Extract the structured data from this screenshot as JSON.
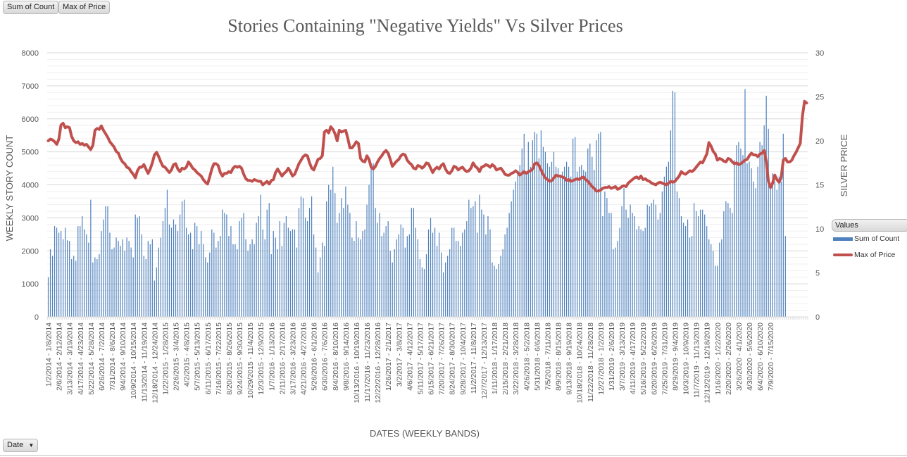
{
  "field_buttons": {
    "sum_of_count": "Sum of Count",
    "max_of_price": "Max of Price",
    "date": "Date",
    "date_dropdown_icon": "chevron-down-icon"
  },
  "legend": {
    "header": "Values",
    "items": [
      "Sum of Count",
      "Max of Price"
    ]
  },
  "colors": {
    "bars": "#4f81bd",
    "line": "#c0504d",
    "grid": "#d9d9d9"
  },
  "chart_data": {
    "type": "bar+line",
    "title": "Stories Containing \"Negative Yields\" Vs Silver Prices",
    "xlabel": "DATES (WEEKLY BANDS)",
    "ylabel": "WEEKLY STORY COUNT",
    "y2label": "SILVER PRICE",
    "ylim": [
      0,
      8000
    ],
    "y2lim": [
      0,
      30
    ],
    "yticks": [
      0,
      1000,
      2000,
      3000,
      4000,
      5000,
      6000,
      7000,
      8000
    ],
    "y2ticks": [
      0,
      5,
      10,
      15,
      20,
      25,
      30
    ],
    "grid": true,
    "legend_position": "right",
    "x_tick_labels": [
      "1/2/2014 - 1/8/2014",
      "2/6/2014 - 2/12/2014",
      "3/13/2014 - 3/19/2014",
      "4/17/2014 - 4/23/2014",
      "5/22/2014 - 5/28/2014",
      "6/26/2014 - 7/2/2014",
      "7/31/2014 - 8/6/2014",
      "9/4/2014 - 9/10/2014",
      "10/9/2014 - 10/15/2014",
      "11/13/2014 - 11/19/2014",
      "12/18/2014 - 12/24/2014",
      "1/22/2015 - 1/28/2015",
      "2/26/2015 - 3/4/2015",
      "4/2/2015 - 4/8/2015",
      "5/7/2015 - 5/13/2015",
      "6/11/2015 - 6/17/2015",
      "7/16/2015 - 7/22/2015",
      "8/20/2015 - 8/26/2015",
      "9/24/2015 - 9/30/2015",
      "10/29/2015 - 11/4/2015",
      "12/3/2015 - 12/9/2015",
      "1/7/2016 - 1/13/2016",
      "2/11/2016 - 2/17/2016",
      "3/17/2016 - 3/23/2016",
      "4/21/2016 - 4/27/2016",
      "5/26/2016 - 6/1/2016",
      "6/30/2016 - 7/6/2016",
      "8/4/2016 - 8/10/2016",
      "9/8/2016 - 9/14/2016",
      "10/13/2016 - 10/19/2016",
      "11/17/2016 - 11/23/2016",
      "12/22/2016 - 12/28/2016",
      "1/26/2017 - 2/1/2017",
      "3/2/2017 - 3/8/2017",
      "4/6/2017 - 4/12/2017",
      "5/11/2017 - 5/17/2017",
      "6/15/2017 - 6/21/2017",
      "7/20/2017 - 7/26/2017",
      "8/24/2017 - 8/30/2017",
      "9/28/2017 - 10/4/2017",
      "11/2/2017 - 11/8/2017",
      "12/7/2017 - 12/13/2017",
      "1/11/2018 - 1/17/2018",
      "2/15/2018 - 2/21/2018",
      "3/22/2018 - 3/28/2018",
      "4/26/2018 - 5/2/2018",
      "5/31/2018 - 6/6/2018",
      "7/5/2018 - 7/11/2018",
      "8/9/2018 - 8/15/2018",
      "9/13/2018 - 9/19/2018",
      "10/18/2018 - 10/24/2018",
      "11/22/2018 - 11/28/2018",
      "12/27/2018 - 1/2/2019",
      "1/31/2019 - 2/6/2019",
      "3/7/2019 - 3/13/2019",
      "4/11/2019 - 4/17/2019",
      "5/16/2019 - 5/22/2019",
      "6/20/2019 - 6/26/2019",
      "7/25/2019 - 7/31/2019",
      "8/29/2019 - 9/4/2019",
      "10/3/2019 - 10/9/2019",
      "11/7/2019 - 11/13/2019",
      "12/12/2019 - 12/18/2019",
      "1/16/2020 - 1/22/2020",
      "2/20/2020 - 2/26/2020",
      "3/26/2020 - 4/1/2020",
      "4/30/2020 - 5/6/2020",
      "6/4/2020 - 6/10/2020",
      "7/9/2020 - 7/15/2020"
    ],
    "weeks_per_label": 5,
    "series": [
      {
        "name": "Sum of Count",
        "type": "bar",
        "axis": "left",
        "values": [
          1200,
          2050,
          1850,
          2750,
          2700,
          2550,
          2600,
          2350,
          2700,
          2320,
          2300,
          1750,
          1850,
          1700,
          2750,
          2750,
          3050,
          2650,
          2500,
          2250,
          3550,
          1650,
          1800,
          1750,
          1900,
          2600,
          2950,
          3350,
          3350,
          2550,
          2050,
          2100,
          2400,
          2300,
          2150,
          2350,
          2000,
          2400,
          2300,
          2100,
          1800,
          3100,
          3000,
          3050,
          2500,
          1850,
          1750,
          2300,
          2200,
          2350,
          1100,
          1500,
          2100,
          2400,
          2900,
          3300,
          3850,
          2800,
          2700,
          2950,
          2800,
          2600,
          3100,
          3500,
          3550,
          2700,
          2500,
          2550,
          2050,
          2850,
          2750,
          2200,
          2600,
          2200,
          1800,
          1650,
          1950,
          2650,
          2550,
          2100,
          2300,
          2450,
          3250,
          3150,
          3100,
          2450,
          2750,
          2200,
          2200,
          2050,
          2900,
          3000,
          3150,
          2350,
          2000,
          2200,
          2350,
          2200,
          2850,
          3050,
          3700,
          2650,
          2350,
          3250,
          3450,
          1900,
          2600,
          2400,
          2050,
          2900,
          2150,
          2850,
          3050,
          2700,
          2600,
          2650,
          2650,
          2100,
          3300,
          3650,
          3600,
          3000,
          2900,
          3300,
          3650,
          2500,
          2100,
          1350,
          1800,
          2250,
          2150,
          3500,
          4000,
          3850,
          4550,
          3750,
          2850,
          3150,
          3600,
          3300,
          3950,
          3400,
          3150,
          2400,
          2300,
          2900,
          2400,
          2350,
          2600,
          2650,
          3400,
          4000,
          4600,
          4650,
          3300,
          2850,
          3150,
          2450,
          2550,
          2750,
          2900,
          2000,
          1650,
          2050,
          2350,
          2500,
          2800,
          2700,
          2100,
          2450,
          2500,
          3300,
          3300,
          2700,
          2350,
          1750,
          1500,
          1450,
          1900,
          2650,
          3000,
          2550,
          2700,
          2150,
          2550,
          1950,
          1350,
          1650,
          1850,
          2050,
          2700,
          2700,
          2300,
          2300,
          2150,
          2550,
          2650,
          2900,
          3550,
          3300,
          3350,
          3500,
          2550,
          3700,
          3250,
          3100,
          2500,
          3050,
          2650,
          1650,
          1550,
          1450,
          1600,
          1850,
          2050,
          2500,
          2700,
          3150,
          3500,
          3850,
          4100,
          4350,
          4600,
          5100,
          5550,
          4350,
          5300,
          4550,
          5350,
          5600,
          5550,
          4800,
          5650,
          5150,
          5000,
          4650,
          4550,
          4700,
          5000,
          4550,
          4500,
          4300,
          4400,
          4550,
          4700,
          4550,
          4250,
          5400,
          5450,
          4400,
          4550,
          4600,
          4450,
          4400,
          5100,
          5250,
          4850,
          4450,
          5350,
          5550,
          5600,
          3050,
          3800,
          3600,
          3150,
          3150,
          2050,
          2100,
          2300,
          2700,
          3350,
          3900,
          3250,
          3000,
          3400,
          3150,
          3050,
          2650,
          2750,
          2650,
          2600,
          2700,
          3400,
          3350,
          3450,
          3550,
          3400,
          2950,
          3150,
          3800,
          4250,
          4550,
          4700,
          5650,
          6850,
          6800,
          3800,
          3600,
          3050,
          2850,
          2750,
          2950,
          2400,
          2450,
          3450,
          3200,
          3050,
          3250,
          3250,
          3100,
          2750,
          2350,
          2200,
          2000,
          1550,
          1550,
          2250,
          2350,
          3200,
          3500,
          3450,
          3300,
          3150,
          4750,
          5200,
          5300,
          5100,
          4900,
          6900,
          4650,
          4700,
          4500,
          4100,
          3900,
          4550,
          5300,
          5200,
          5800,
          6700,
          5700,
          3950,
          4350,
          4100,
          3850,
          4250,
          4100,
          5550,
          2450
        ]
      },
      {
        "name": "Max of Price",
        "type": "line",
        "axis": "right",
        "values": [
          20.0,
          20.2,
          20.1,
          19.9,
          19.6,
          20.2,
          21.8,
          22.0,
          21.5,
          21.6,
          21.5,
          20.5,
          20.0,
          19.8,
          19.9,
          19.6,
          19.7,
          19.5,
          19.6,
          19.3,
          19.0,
          19.5,
          21.2,
          21.4,
          21.3,
          21.7,
          21.2,
          20.8,
          20.4,
          19.9,
          19.6,
          19.3,
          18.8,
          18.6,
          18.0,
          17.6,
          17.4,
          17.0,
          16.9,
          16.5,
          16.2,
          15.8,
          16.6,
          17.0,
          17.0,
          17.3,
          16.8,
          16.3,
          16.8,
          17.5,
          18.4,
          18.7,
          18.2,
          17.6,
          17.1,
          17.0,
          16.7,
          16.4,
          16.7,
          17.3,
          17.4,
          16.8,
          16.5,
          16.9,
          16.8,
          17.0,
          17.6,
          17.3,
          16.9,
          16.7,
          16.4,
          16.2,
          16.0,
          15.6,
          15.3,
          15.1,
          15.9,
          16.8,
          17.4,
          17.4,
          17.2,
          16.4,
          16.0,
          16.3,
          16.3,
          16.5,
          16.4,
          16.9,
          17.1,
          17.0,
          17.1,
          16.9,
          16.2,
          15.7,
          15.5,
          15.5,
          15.4,
          15.6,
          15.5,
          15.4,
          15.4,
          15.0,
          15.2,
          15.4,
          15.1,
          15.5,
          15.6,
          16.4,
          16.8,
          16.4,
          16.0,
          16.3,
          16.5,
          16.9,
          16.5,
          16.0,
          16.2,
          16.8,
          17.4,
          17.8,
          18.2,
          18.4,
          18.3,
          17.5,
          16.9,
          16.7,
          17.3,
          17.9,
          18.0,
          18.3,
          21.0,
          21.2,
          20.9,
          21.6,
          21.3,
          20.8,
          20.0,
          21.2,
          21.0,
          21.1,
          21.2,
          20.3,
          19.2,
          19.2,
          19.5,
          19.9,
          19.7,
          18.0,
          17.7,
          17.6,
          18.3,
          17.9,
          17.0,
          16.8,
          17.1,
          17.6,
          18.0,
          18.3,
          18.7,
          18.9,
          18.6,
          17.9,
          17.1,
          17.4,
          17.7,
          17.9,
          18.3,
          18.5,
          18.4,
          17.8,
          17.5,
          17.3,
          16.9,
          16.8,
          17.2,
          17.1,
          16.9,
          17.1,
          17.5,
          17.4,
          16.9,
          16.4,
          16.8,
          17.0,
          16.8,
          17.2,
          17.4,
          16.8,
          16.4,
          16.3,
          16.6,
          17.1,
          17.0,
          16.7,
          16.9,
          17.0,
          16.7,
          16.5,
          16.6,
          16.9,
          17.5,
          17.1,
          16.9,
          16.5,
          17.0,
          17.1,
          17.3,
          17.2,
          17.0,
          17.3,
          17.1,
          16.7,
          16.8,
          16.9,
          16.6,
          16.2,
          16.1,
          16.1,
          16.3,
          16.4,
          16.6,
          16.4,
          16.1,
          16.3,
          16.5,
          16.3,
          16.5,
          16.6,
          16.8,
          17.4,
          17.5,
          17.2,
          16.7,
          16.2,
          15.8,
          15.6,
          15.4,
          15.5,
          15.8,
          16.1,
          16.0,
          16.0,
          15.9,
          15.8,
          15.5,
          15.6,
          15.4,
          15.5,
          15.6,
          15.7,
          15.6,
          15.8,
          15.9,
          15.6,
          15.4,
          15.1,
          14.8,
          14.6,
          14.3,
          14.3,
          14.4,
          14.6,
          14.7,
          14.7,
          14.8,
          14.6,
          14.7,
          14.8,
          14.5,
          14.6,
          14.8,
          14.9,
          14.8,
          15.2,
          15.4,
          15.6,
          15.8,
          15.9,
          15.7,
          16.0,
          15.6,
          15.7,
          15.5,
          15.4,
          15.2,
          15.1,
          15.0,
          15.2,
          15.3,
          15.2,
          15.1,
          15.0,
          15.2,
          15.4,
          15.3,
          15.4,
          15.7,
          16.0,
          16.5,
          16.3,
          16.2,
          16.4,
          16.6,
          16.5,
          16.7,
          17.0,
          17.3,
          17.6,
          17.5,
          18.0,
          18.5,
          19.8,
          19.4,
          18.8,
          18.5,
          17.8,
          18.0,
          17.9,
          17.7,
          17.6,
          18.0,
          17.9,
          17.6,
          17.4,
          17.5,
          17.3,
          17.4,
          17.6,
          17.8,
          17.9,
          18.3,
          18.6,
          18.4,
          18.4,
          18.2,
          18.5,
          18.6,
          18.9,
          17.6,
          15.4,
          14.7,
          15.2,
          16.1,
          15.6,
          15.3,
          15.8,
          17.8,
          18.0,
          17.6,
          17.6,
          17.8,
          18.3,
          18.7,
          19.2,
          19.7,
          22.8,
          24.5,
          24.3
        ]
      }
    ]
  }
}
